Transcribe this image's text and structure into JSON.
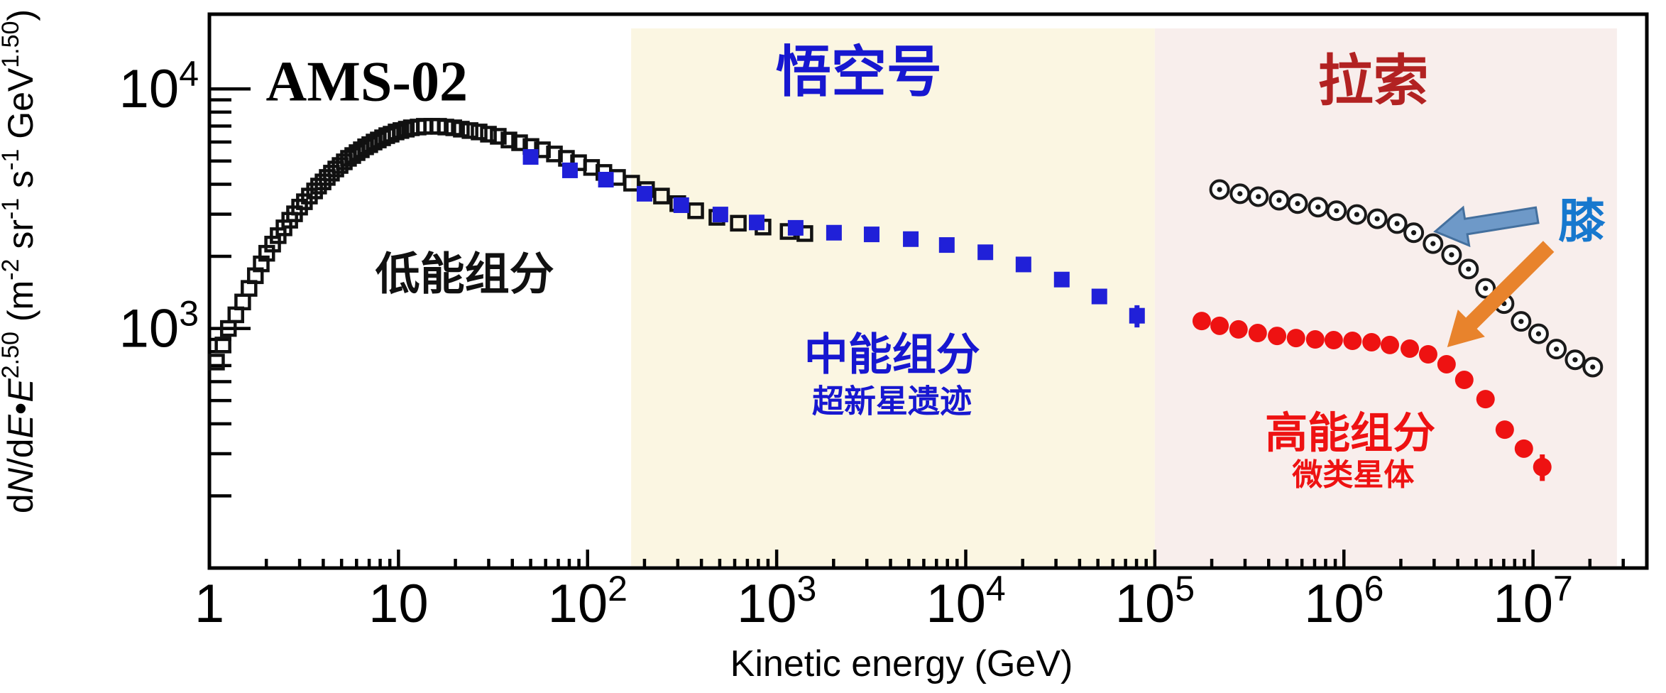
{
  "chart_data": {
    "type": "scatter",
    "title": "",
    "xlabel": "Kinetic energy (GeV)",
    "ylabel": "dN/dE•E^2.50 (m^-2 sr^-1 s^-1 GeV^1.50)",
    "ylabel_rich": [
      {
        "t": "d"
      },
      {
        "t": "N",
        "i": 1
      },
      {
        "t": "/d"
      },
      {
        "t": "E",
        "i": 1
      },
      {
        "t": "•"
      },
      {
        "t": "E",
        "i": 1
      },
      {
        "t": "2.50",
        "s": 1
      },
      {
        "t": " (m"
      },
      {
        "t": "-2",
        "s": 1
      },
      {
        "t": " sr"
      },
      {
        "t": "-1",
        "s": 1
      },
      {
        "t": " s"
      },
      {
        "t": "-1",
        "s": 1
      },
      {
        "t": " GeV"
      },
      {
        "t": "1.50",
        "s": 1
      },
      {
        "t": ")"
      }
    ],
    "x_scale": "log",
    "y_scale": "log",
    "x_range": [
      1,
      40000000
    ],
    "y_range": [
      100,
      20500
    ],
    "grid": false,
    "legend": "none",
    "x_ticks": [
      {
        "value": 1,
        "base": "1",
        "sup": ""
      },
      {
        "value": 10,
        "base": "10",
        "sup": ""
      },
      {
        "value": 100,
        "base": "10",
        "sup": "2"
      },
      {
        "value": 1000,
        "base": "10",
        "sup": "3"
      },
      {
        "value": 10000,
        "base": "10",
        "sup": "4"
      },
      {
        "value": 100000,
        "base": "10",
        "sup": "5"
      },
      {
        "value": 1000000,
        "base": "10",
        "sup": "6"
      },
      {
        "value": 10000000,
        "base": "10",
        "sup": "7"
      }
    ],
    "y_ticks": [
      {
        "value": 1000,
        "base": "10",
        "sup": "3"
      },
      {
        "value": 10000,
        "base": "10",
        "sup": "4"
      }
    ],
    "regions": [
      {
        "name": "region-ams02",
        "x_range": [
          1,
          170
        ],
        "fill": "none"
      },
      {
        "name": "region-wukong",
        "x_range": [
          170,
          100000
        ],
        "fill": "#FBF6E2"
      },
      {
        "name": "region-lhaaso",
        "x_range": [
          100000,
          27800000
        ],
        "fill": "#F8EEEC"
      }
    ],
    "series": [
      {
        "name": "ams02-low-energy",
        "marker": "open-square",
        "color": "#111111",
        "points": [
          [
            1.09,
            724
          ],
          [
            1.18,
            853
          ],
          [
            1.26,
            1000
          ],
          [
            1.38,
            1140
          ],
          [
            1.5,
            1290
          ],
          [
            1.62,
            1470
          ],
          [
            1.75,
            1660
          ],
          [
            1.88,
            1860
          ],
          [
            2.01,
            2060
          ],
          [
            2.16,
            2250
          ],
          [
            2.31,
            2440
          ],
          [
            2.48,
            2630
          ],
          [
            2.66,
            2830
          ],
          [
            2.82,
            3010
          ],
          [
            3.0,
            3210
          ],
          [
            3.18,
            3380
          ],
          [
            3.38,
            3570
          ],
          [
            3.6,
            3750
          ],
          [
            3.78,
            3930
          ],
          [
            3.99,
            4090
          ],
          [
            4.2,
            4270
          ],
          [
            4.42,
            4450
          ],
          [
            4.66,
            4630
          ],
          [
            4.91,
            4790
          ],
          [
            5.17,
            4960
          ],
          [
            5.44,
            5130
          ],
          [
            5.73,
            5270
          ],
          [
            6.04,
            5420
          ],
          [
            6.36,
            5570
          ],
          [
            6.7,
            5730
          ],
          [
            7.05,
            5850
          ],
          [
            7.43,
            6000
          ],
          [
            7.82,
            6120
          ],
          [
            8.24,
            6250
          ],
          [
            8.67,
            6380
          ],
          [
            9.14,
            6470
          ],
          [
            9.71,
            6610
          ],
          [
            10.3,
            6700
          ],
          [
            11.0,
            6790
          ],
          [
            11.7,
            6880
          ],
          [
            12.7,
            6930
          ],
          [
            13.7,
            6980
          ],
          [
            15.0,
            6980
          ],
          [
            16.3,
            6980
          ],
          [
            17.8,
            6930
          ],
          [
            19.6,
            6880
          ],
          [
            21.5,
            6790
          ],
          [
            23.9,
            6700
          ],
          [
            26.7,
            6610
          ],
          [
            29.9,
            6470
          ],
          [
            33.7,
            6340
          ],
          [
            38.4,
            6120
          ],
          [
            43.7,
            5960
          ],
          [
            50.2,
            5750
          ],
          [
            57.7,
            5570
          ],
          [
            66.8,
            5350
          ],
          [
            77.3,
            5130
          ],
          [
            89.6,
            4920
          ],
          [
            105,
            4700
          ],
          [
            122,
            4480
          ],
          [
            144,
            4270
          ],
          [
            171,
            4040
          ],
          [
            205,
            3800
          ],
          [
            246,
            3570
          ],
          [
            300,
            3320
          ],
          [
            373,
            3100
          ],
          [
            483,
            2910
          ],
          [
            627,
            2750
          ],
          [
            847,
            2650
          ],
          [
            1150,
            2540
          ],
          [
            1410,
            2490
          ]
        ],
        "errors": []
      },
      {
        "name": "lhaaso-knee-circles",
        "marker": "circled-dot",
        "color": "#1A1A1A",
        "points": [
          [
            220000,
            3800
          ],
          [
            282000,
            3650
          ],
          [
            353000,
            3550
          ],
          [
            454000,
            3430
          ],
          [
            569000,
            3320
          ],
          [
            730000,
            3210
          ],
          [
            914000,
            3100
          ],
          [
            1170000,
            2990
          ],
          [
            1500000,
            2870
          ],
          [
            1910000,
            2740
          ],
          [
            2340000,
            2510
          ],
          [
            2960000,
            2260
          ],
          [
            3710000,
            2030
          ],
          [
            4560000,
            1770
          ],
          [
            5610000,
            1470
          ],
          [
            7030000,
            1270
          ],
          [
            8650000,
            1070
          ],
          [
            10700000,
            950
          ],
          [
            13300000,
            820
          ],
          [
            16700000,
            740
          ],
          [
            20700000,
            690
          ]
        ],
        "errors": []
      },
      {
        "name": "dampe-mid-energy",
        "marker": "filled-square",
        "color": "#2020D8",
        "points": [
          [
            50,
            5200
          ],
          [
            80.7,
            4570
          ],
          [
            125,
            4180
          ],
          [
            200,
            3650
          ],
          [
            313,
            3270
          ],
          [
            504,
            2990
          ],
          [
            784,
            2770
          ],
          [
            1260,
            2630
          ],
          [
            2010,
            2510
          ],
          [
            3180,
            2470
          ],
          [
            5120,
            2360
          ],
          [
            7940,
            2230
          ],
          [
            12700,
            2080
          ],
          [
            20200,
            1850
          ],
          [
            32200,
            1600
          ],
          [
            50900,
            1360
          ],
          [
            80500,
            1130
          ]
        ],
        "errors": [
          {
            "x": 80500,
            "y": 1130,
            "lo": 1010,
            "hi": 1250
          }
        ]
      },
      {
        "name": "lhaaso-high-energy",
        "marker": "filled-circle",
        "color": "#EE1212",
        "points": [
          [
            177000,
            1074
          ],
          [
            220000,
            1026
          ],
          [
            277000,
            991
          ],
          [
            350000,
            957
          ],
          [
            443000,
            931
          ],
          [
            558000,
            912
          ],
          [
            705000,
            900
          ],
          [
            883000,
            894
          ],
          [
            1110000,
            888
          ],
          [
            1400000,
            876
          ],
          [
            1750000,
            853
          ],
          [
            2230000,
            824
          ],
          [
            2790000,
            780
          ],
          [
            3490000,
            709
          ],
          [
            4330000,
            610
          ],
          [
            5610000,
            507
          ],
          [
            7090000,
            378
          ],
          [
            8950000,
            315
          ],
          [
            11200000,
            264
          ]
        ],
        "errors": [
          {
            "x": 8950000,
            "y": 315,
            "lo": 292,
            "hi": 340
          },
          {
            "x": 11200000,
            "y": 264,
            "lo": 231,
            "hi": 298
          }
        ]
      }
    ],
    "annotations": [
      {
        "key": "ams02",
        "text": "AMS-02",
        "color": "#000000",
        "x": 6.8,
        "y": 10900
      },
      {
        "key": "low-energy",
        "text": "低能组分",
        "color": "#111111",
        "x": 22.4,
        "y": 1700
      },
      {
        "key": "wukong",
        "text": "悟空号",
        "color": "#1717D0",
        "x": 2720,
        "y": 11900
      },
      {
        "key": "mid-energy",
        "text": "中能组分",
        "color": "#1717D0",
        "x": 4080,
        "y": 785
      },
      {
        "key": "mid-sub",
        "text": "超新星遗迹",
        "color": "#1717D0",
        "x": 4070,
        "y": 500
      },
      {
        "key": "lhaaso",
        "text": "拉索",
        "color": "#B22222",
        "x": 1430000,
        "y": 10900
      },
      {
        "key": "high-energy",
        "text": "高能组分",
        "color": "#EE1212",
        "x": 1080000,
        "y": 368
      },
      {
        "key": "high-sub",
        "text": "微类星体",
        "color": "#EE1212",
        "x": 1120000,
        "y": 246
      },
      {
        "key": "knee",
        "text": "膝",
        "color": "#1778CE",
        "x": 18100000,
        "y": 2830
      }
    ],
    "arrows": [
      {
        "name": "knee-arrow-proton",
        "fill": "#6E99C8",
        "stroke": "#44709E",
        "tail": {
          "x": 10500000,
          "y": 2970
        },
        "tip": {
          "x": 3040000,
          "y": 2540
        }
      },
      {
        "name": "knee-arrow-highenergy",
        "fill": "#E8832C",
        "stroke": "none",
        "tail": {
          "x": 12100000,
          "y": 2200
        },
        "tip": {
          "x": 3520000,
          "y": 835
        }
      }
    ]
  }
}
